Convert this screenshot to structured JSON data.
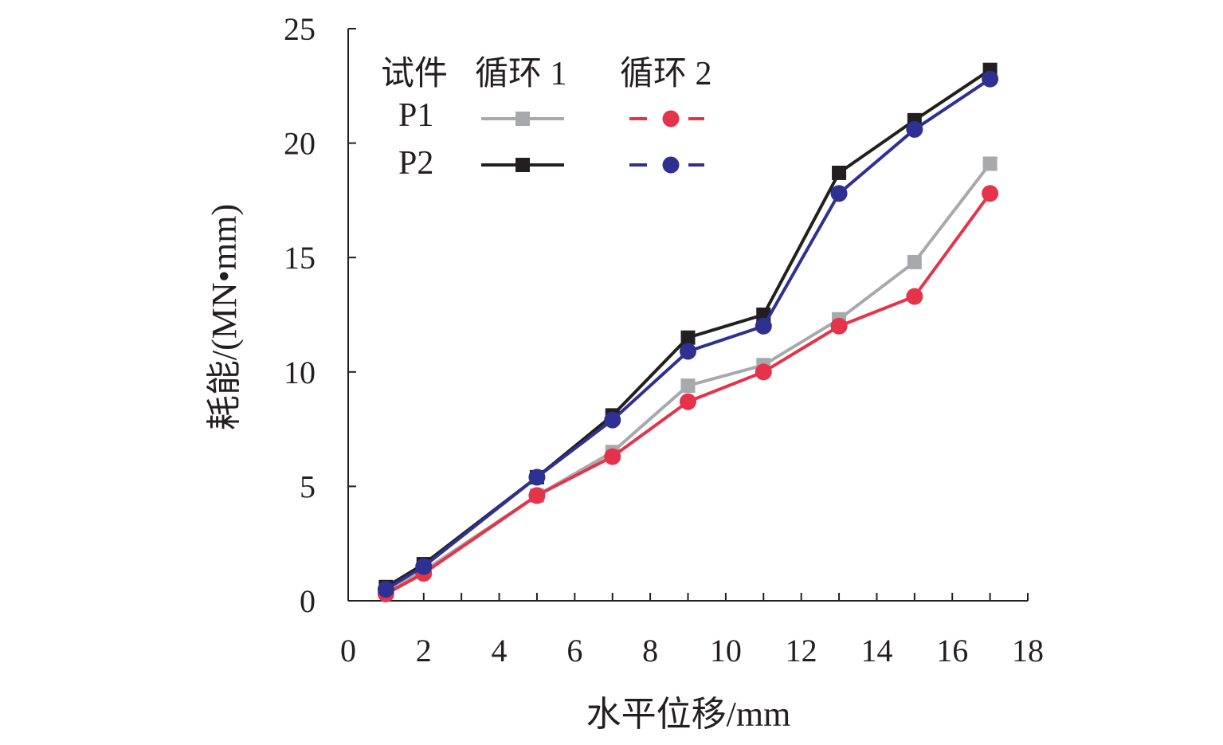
{
  "chart_data": {
    "type": "line",
    "xlabel": "水平位移/mm",
    "ylabel": "耗能/(MN•mm)",
    "xlim": [
      0,
      18
    ],
    "ylim": [
      0,
      25
    ],
    "xticks": [
      "0",
      "2",
      "4",
      "6",
      "8",
      "10",
      "12",
      "14",
      "16",
      "18"
    ],
    "yticks": [
      "0",
      "5",
      "10",
      "15",
      "20",
      "25"
    ],
    "grid": false,
    "legend": {
      "placement": "top-left",
      "header_specimen": "试件",
      "header_cycle1": "循环 1",
      "header_cycle2": "循环 2",
      "rows": [
        "P1",
        "P2"
      ]
    },
    "series": [
      {
        "specimen": "P1",
        "cycle": "循环 1",
        "color": "#a7a9ac",
        "marker": "square",
        "line": "solid",
        "x": [
          1,
          2,
          5,
          7,
          9,
          11,
          13,
          15,
          17
        ],
        "y": [
          0.4,
          1.3,
          4.6,
          6.5,
          9.4,
          10.3,
          12.3,
          14.8,
          19.1
        ]
      },
      {
        "specimen": "P1",
        "cycle": "循环 2",
        "color": "#e5334a",
        "marker": "circle",
        "line": "solid",
        "x": [
          1,
          2,
          5,
          7,
          9,
          11,
          13,
          15,
          17
        ],
        "y": [
          0.3,
          1.2,
          4.6,
          6.3,
          8.7,
          10.0,
          12.0,
          13.3,
          17.8
        ]
      },
      {
        "specimen": "P2",
        "cycle": "循环 1",
        "color": "#231f20",
        "marker": "square",
        "line": "solid",
        "x": [
          1,
          2,
          5,
          7,
          9,
          11,
          13,
          15,
          17
        ],
        "y": [
          0.6,
          1.6,
          5.4,
          8.1,
          11.5,
          12.5,
          18.7,
          21.0,
          23.2
        ]
      },
      {
        "specimen": "P2",
        "cycle": "循环 2",
        "color": "#2e3192",
        "marker": "circle",
        "line": "solid",
        "x": [
          1,
          2,
          5,
          7,
          9,
          11,
          13,
          15,
          17
        ],
        "y": [
          0.5,
          1.5,
          5.4,
          7.9,
          10.9,
          12.0,
          17.8,
          20.6,
          22.8
        ]
      }
    ]
  }
}
